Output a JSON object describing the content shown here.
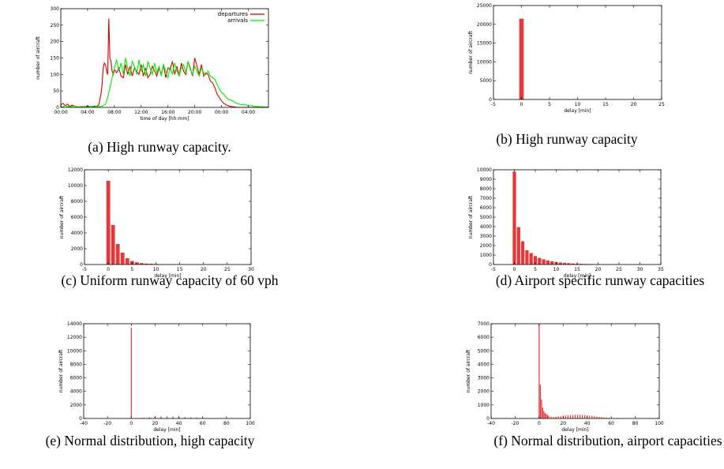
{
  "chart_data": [
    {
      "id": "a",
      "type": "line",
      "caption": "(a) High runway capacity.",
      "xlabel": "time of day [hh:mm]",
      "ylabel": "number of aircraft",
      "xlim": [
        0,
        1860
      ],
      "ylim": [
        0,
        300
      ],
      "xticks": [
        0,
        240,
        480,
        720,
        960,
        1200,
        1440,
        1680
      ],
      "xticklabels": [
        "00:00",
        "04:00",
        "08:00",
        "12:00",
        "16:00",
        "20:00",
        "00:00",
        "04:00"
      ],
      "yticks": [
        0,
        50,
        100,
        150,
        200,
        250,
        300
      ],
      "legend": "top-right",
      "series": [
        {
          "name": "departures",
          "color": "#dd0000",
          "x": [
            0,
            20,
            40,
            60,
            80,
            100,
            120,
            140,
            160,
            180,
            200,
            220,
            240,
            260,
            280,
            300,
            320,
            340,
            360,
            370,
            380,
            390,
            400,
            410,
            420,
            430,
            440,
            450,
            460,
            470,
            480,
            500,
            520,
            540,
            560,
            580,
            600,
            620,
            640,
            660,
            680,
            700,
            720,
            740,
            760,
            780,
            800,
            820,
            840,
            860,
            880,
            900,
            920,
            940,
            960,
            980,
            1000,
            1020,
            1040,
            1060,
            1080,
            1100,
            1120,
            1140,
            1160,
            1180,
            1200,
            1220,
            1240,
            1260,
            1280,
            1300,
            1320,
            1340,
            1360,
            1380,
            1400,
            1420,
            1440,
            1460,
            1480,
            1500,
            1520,
            1540,
            1560,
            1580,
            1600,
            1620,
            1640,
            1660,
            1680,
            1700,
            1720,
            1740,
            1760,
            1780,
            1800,
            1820,
            1840,
            1860
          ],
          "y": [
            8,
            12,
            5,
            10,
            3,
            7,
            4,
            2,
            1,
            2,
            3,
            2,
            5,
            2,
            3,
            4,
            3,
            8,
            40,
            70,
            120,
            135,
            130,
            110,
            100,
            270,
            150,
            140,
            110,
            100,
            115,
            105,
            120,
            95,
            90,
            130,
            100,
            125,
            95,
            120,
            110,
            100,
            130,
            95,
            120,
            90,
            100,
            125,
            110,
            95,
            120,
            100,
            130,
            90,
            120,
            115,
            140,
            100,
            125,
            95,
            135,
            110,
            100,
            140,
            120,
            95,
            150,
            125,
            100,
            130,
            95,
            105,
            100,
            80,
            75,
            60,
            40,
            30,
            20,
            12,
            8,
            5,
            3,
            2,
            1,
            0,
            0,
            0,
            0,
            0,
            0,
            0,
            0,
            0,
            0,
            0,
            0,
            0,
            0,
            0
          ]
        },
        {
          "name": "arrivals",
          "color": "#00ee00",
          "x": [
            0,
            20,
            40,
            60,
            80,
            100,
            120,
            140,
            160,
            180,
            200,
            220,
            240,
            260,
            280,
            300,
            320,
            340,
            360,
            380,
            400,
            420,
            440,
            460,
            480,
            500,
            520,
            540,
            560,
            580,
            600,
            620,
            640,
            660,
            680,
            700,
            720,
            740,
            760,
            780,
            800,
            820,
            840,
            860,
            880,
            900,
            920,
            940,
            960,
            980,
            1000,
            1020,
            1040,
            1060,
            1080,
            1100,
            1120,
            1140,
            1160,
            1180,
            1200,
            1220,
            1240,
            1260,
            1280,
            1300,
            1320,
            1340,
            1360,
            1380,
            1400,
            1420,
            1440,
            1460,
            1480,
            1500,
            1520,
            1540,
            1560,
            1580,
            1600,
            1620,
            1640,
            1660,
            1680,
            1700,
            1720,
            1740,
            1760,
            1780,
            1800,
            1820,
            1840,
            1860
          ],
          "y": [
            3,
            2,
            5,
            3,
            2,
            3,
            4,
            1,
            2,
            1,
            2,
            3,
            1,
            2,
            3,
            2,
            3,
            2,
            3,
            5,
            10,
            30,
            60,
            90,
            120,
            145,
            110,
            135,
            100,
            150,
            120,
            95,
            140,
            125,
            100,
            145,
            110,
            130,
            95,
            140,
            120,
            100,
            135,
            105,
            125,
            95,
            130,
            110,
            90,
            125,
            100,
            135,
            110,
            95,
            120,
            130,
            105,
            140,
            115,
            100,
            125,
            110,
            95,
            120,
            105,
            100,
            110,
            95,
            90,
            85,
            70,
            55,
            45,
            40,
            30,
            25,
            22,
            20,
            15,
            12,
            10,
            8,
            10,
            7,
            5,
            6,
            4,
            3,
            3,
            2,
            2,
            1,
            1,
            1
          ]
        }
      ]
    },
    {
      "id": "b",
      "type": "bar",
      "caption": "(b) High runway capacity",
      "xlabel": "delay [min]",
      "ylabel": "number of aircraft",
      "xlim": [
        -5,
        25
      ],
      "ylim": [
        0,
        25000
      ],
      "xticks": [
        -5,
        0,
        5,
        10,
        15,
        20,
        25
      ],
      "yticks": [
        0,
        5000,
        10000,
        15000,
        20000,
        25000
      ],
      "barwidth": 0.8,
      "color": "#e8373a",
      "x": [
        0,
        1,
        2,
        3,
        4,
        5,
        6,
        7,
        8,
        9,
        10,
        11,
        12,
        13,
        14,
        15,
        16,
        17,
        18,
        19,
        20,
        21,
        22,
        23
      ],
      "values": [
        21500,
        80,
        50,
        30,
        30,
        20,
        20,
        15,
        10,
        10,
        10,
        8,
        8,
        6,
        6,
        5,
        5,
        4,
        4,
        3,
        3,
        3,
        2,
        2
      ]
    },
    {
      "id": "c",
      "type": "bar",
      "caption": "(c) Uniform runway capacity of 60 vph",
      "xlabel": "delay [min]",
      "ylabel": "number of aircraft",
      "xlim": [
        -5,
        30
      ],
      "ylim": [
        0,
        12000
      ],
      "xticks": [
        -5,
        0,
        5,
        10,
        15,
        20,
        25,
        30
      ],
      "yticks": [
        0,
        2000,
        4000,
        6000,
        8000,
        10000,
        12000
      ],
      "barwidth": 0.8,
      "color": "#e8373a",
      "x": [
        0,
        1,
        2,
        3,
        4,
        5,
        6,
        7,
        8,
        9,
        10,
        11,
        12,
        13,
        14,
        15,
        16,
        17,
        18,
        19,
        20,
        21,
        22,
        23,
        24,
        25,
        26,
        27,
        28,
        29
      ],
      "values": [
        10600,
        5000,
        2600,
        1500,
        800,
        450,
        280,
        180,
        120,
        90,
        70,
        50,
        40,
        30,
        25,
        20,
        15,
        12,
        10,
        8,
        6,
        5,
        4,
        4,
        3,
        3,
        2,
        2,
        2,
        1
      ]
    },
    {
      "id": "d",
      "type": "bar",
      "caption": "(d) Airport specific runway capacities",
      "xlabel": "delay [min]",
      "ylabel": "number of aircraft",
      "xlim": [
        -5,
        35
      ],
      "ylim": [
        0,
        10000
      ],
      "xticks": [
        -5,
        0,
        5,
        10,
        15,
        20,
        25,
        30,
        35
      ],
      "yticks": [
        0,
        1000,
        2000,
        3000,
        4000,
        5000,
        6000,
        7000,
        8000,
        9000,
        10000
      ],
      "barwidth": 0.8,
      "color": "#e8373a",
      "x": [
        0,
        1,
        2,
        3,
        4,
        5,
        6,
        7,
        8,
        9,
        10,
        11,
        12,
        13,
        14,
        15,
        16,
        17,
        18,
        19,
        20,
        21,
        22,
        23,
        24,
        25,
        26,
        27,
        28,
        29,
        30,
        31,
        32,
        33
      ],
      "values": [
        9800,
        3950,
        2450,
        1500,
        1200,
        900,
        700,
        550,
        430,
        340,
        270,
        210,
        170,
        140,
        110,
        90,
        75,
        60,
        50,
        40,
        35,
        30,
        25,
        20,
        18,
        15,
        12,
        10,
        9,
        8,
        7,
        6,
        5,
        4
      ]
    },
    {
      "id": "e",
      "type": "bar",
      "caption": "(e) Normal distribution, high capacity",
      "xlabel": "delay [min]",
      "ylabel": "number of aircraft",
      "xlim": [
        -40,
        100
      ],
      "ylim": [
        0,
        14000
      ],
      "xticks": [
        -40,
        -20,
        0,
        20,
        40,
        60,
        80,
        100
      ],
      "yticks": [
        0,
        2000,
        4000,
        6000,
        8000,
        10000,
        12000,
        14000
      ],
      "barwidth": 0.8,
      "color": "#e8373a",
      "x": [
        0,
        5,
        10,
        15,
        20,
        25,
        30,
        35,
        40,
        45,
        50,
        55,
        60,
        65,
        70,
        75,
        80,
        85
      ],
      "values": [
        13400,
        60,
        120,
        180,
        260,
        300,
        320,
        300,
        260,
        210,
        160,
        120,
        80,
        50,
        30,
        20,
        10,
        5
      ]
    },
    {
      "id": "f",
      "type": "bar",
      "caption": "(f) Normal distribution, airport capacities",
      "xlabel": "delay [min]",
      "ylabel": "number of aircraft",
      "xlim": [
        -40,
        100
      ],
      "ylim": [
        0,
        7000
      ],
      "xticks": [
        -40,
        -20,
        0,
        20,
        40,
        60,
        80,
        100
      ],
      "yticks": [
        0,
        1000,
        2000,
        3000,
        4000,
        5000,
        6000,
        7000
      ],
      "barwidth": 0.8,
      "color": "#e8373a",
      "x": [
        0,
        1,
        2,
        3,
        4,
        5,
        6,
        7,
        8,
        10,
        12,
        14,
        16,
        18,
        20,
        22,
        24,
        26,
        28,
        30,
        32,
        34,
        36,
        38,
        40,
        42,
        44,
        46,
        48,
        50,
        52,
        54,
        56,
        58,
        60,
        62,
        64,
        66,
        68,
        70,
        72,
        74,
        76,
        78,
        80
      ],
      "values": [
        7000,
        2500,
        1400,
        800,
        550,
        400,
        320,
        260,
        200,
        150,
        130,
        140,
        160,
        180,
        200,
        220,
        240,
        250,
        260,
        270,
        280,
        270,
        260,
        250,
        230,
        210,
        190,
        170,
        150,
        120,
        100,
        80,
        60,
        45,
        35,
        25,
        20,
        15,
        10,
        8,
        6,
        4,
        3,
        2,
        1
      ]
    }
  ]
}
